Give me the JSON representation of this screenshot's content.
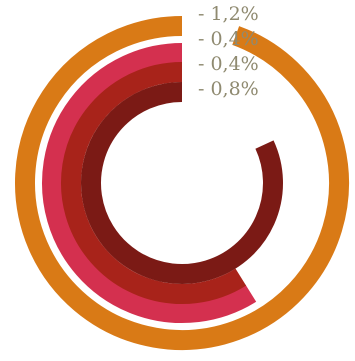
{
  "chart_data": {
    "type": "radial-bar",
    "title": "",
    "start_angle_deg": 0,
    "direction": "counterclockwise",
    "series": [
      {
        "label": "- 1,2%",
        "color": "#D97A16",
        "sweep_deg": 340
      },
      {
        "label": "- 0,4%",
        "color": "#D4304F",
        "sweep_deg": 212
      },
      {
        "label": "- 0,4%",
        "color": "#A8231A",
        "sweep_deg": 212
      },
      {
        "label": "- 0,8%",
        "color": "#7B1A15",
        "sweep_deg": 295
      }
    ],
    "label_color": "#8F8A70"
  }
}
